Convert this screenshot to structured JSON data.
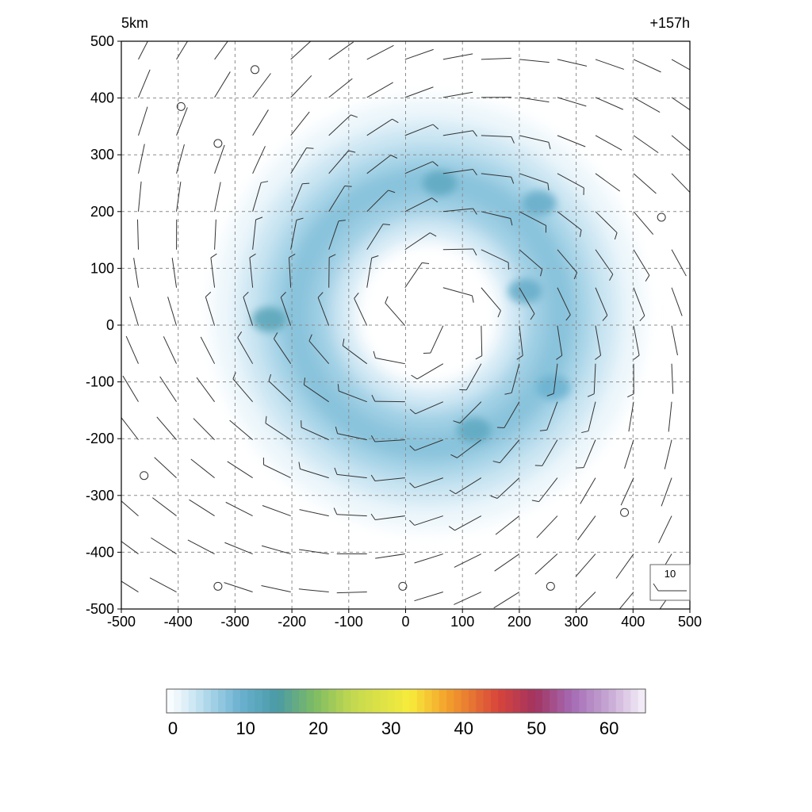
{
  "chart_data": {
    "type": "heatmap",
    "title_left": "5km",
    "title_right": "+157h",
    "xlabel": "",
    "ylabel": "",
    "xlim": [
      -500,
      500
    ],
    "ylim": [
      -500,
      500
    ],
    "x_ticks": [
      -500,
      -400,
      -300,
      -200,
      -100,
      0,
      100,
      200,
      300,
      400,
      500
    ],
    "y_ticks": [
      500,
      400,
      300,
      200,
      100,
      0,
      -100,
      -200,
      -300,
      -400,
      -500
    ],
    "grid": true,
    "grid_style": "dashed",
    "field": {
      "pattern": "annular ring of high values centered near the domain center",
      "ring_center": [
        40,
        20
      ],
      "ring_radius": 230,
      "peak_value": 13,
      "eye_value": 0,
      "local_maxima": [
        {
          "x": -240,
          "y": 10,
          "value": 13
        },
        {
          "x": 60,
          "y": 250,
          "value": 12
        },
        {
          "x": 235,
          "y": 215,
          "value": 11
        },
        {
          "x": 210,
          "y": 60,
          "value": 11
        },
        {
          "x": 120,
          "y": -185,
          "value": 12
        },
        {
          "x": 260,
          "y": -110,
          "value": 10
        }
      ]
    },
    "wind_reference": {
      "label": "10",
      "position": "bottom-right"
    },
    "calm_markers": [
      {
        "x": -265,
        "y": 450
      },
      {
        "x": -395,
        "y": 385
      },
      {
        "x": -330,
        "y": 320
      },
      {
        "x": 450,
        "y": 190
      },
      {
        "x": -460,
        "y": -265
      },
      {
        "x": 385,
        "y": -330
      },
      {
        "x": -330,
        "y": -460
      },
      {
        "x": -5,
        "y": -460
      },
      {
        "x": 255,
        "y": -460
      }
    ],
    "colorbar": {
      "ticks": [
        0,
        10,
        20,
        30,
        40,
        50,
        60
      ],
      "range": [
        0,
        65
      ],
      "levels": 65,
      "stops": [
        {
          "value": 0,
          "color": "#ffffff"
        },
        {
          "value": 2,
          "color": "#e6f3fa"
        },
        {
          "value": 5,
          "color": "#b6dced"
        },
        {
          "value": 10,
          "color": "#6ab1d0"
        },
        {
          "value": 15,
          "color": "#4a9aa6"
        },
        {
          "value": 20,
          "color": "#7dbb64"
        },
        {
          "value": 25,
          "color": "#c1d850"
        },
        {
          "value": 33,
          "color": "#f7ec3c"
        },
        {
          "value": 38,
          "color": "#f4a22c"
        },
        {
          "value": 45,
          "color": "#d8453a"
        },
        {
          "value": 50,
          "color": "#a23360"
        },
        {
          "value": 55,
          "color": "#a56bb4"
        },
        {
          "value": 60,
          "color": "#c6a8d4"
        },
        {
          "value": 65,
          "color": "#f7f2fb"
        }
      ]
    }
  }
}
